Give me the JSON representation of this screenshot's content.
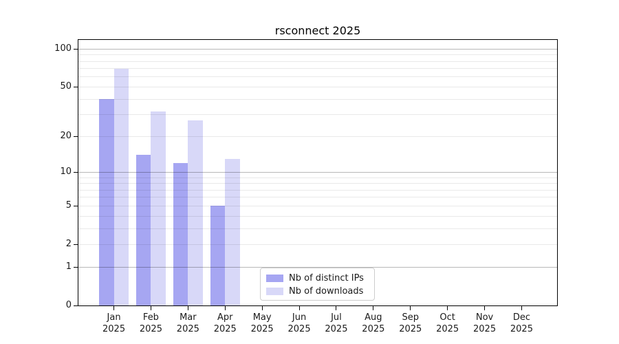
{
  "title": "rsconnect 2025",
  "chart_data": {
    "type": "bar",
    "title": "rsconnect 2025",
    "categories": [
      "Jan",
      "Feb",
      "Mar",
      "Apr",
      "May",
      "Jun",
      "Jul",
      "Aug",
      "Sep",
      "Oct",
      "Nov",
      "Dec"
    ],
    "category_year": "2025",
    "series": [
      {
        "name": "Nb of distinct IPs",
        "key": "distinct-ips",
        "color": "#a6a6f2",
        "values": [
          40,
          14,
          12,
          5,
          0,
          0,
          0,
          0,
          0,
          0,
          0,
          0
        ]
      },
      {
        "name": "Nb of downloads",
        "key": "downloads",
        "color": "#d8d8f8",
        "values": [
          70,
          32,
          27,
          13,
          0,
          0,
          0,
          0,
          0,
          0,
          0,
          0
        ]
      }
    ],
    "xlabel": "",
    "ylabel": "",
    "y_scale": "log1p",
    "y_axis_range": [
      0,
      118
    ],
    "y_tick_labels": [
      0,
      1,
      2,
      5,
      10,
      20,
      50,
      100
    ],
    "grid_major": [
      1,
      10,
      100
    ],
    "grid_minor": [
      2,
      3,
      4,
      5,
      6,
      7,
      8,
      9,
      20,
      30,
      40,
      50,
      60,
      70,
      80,
      90
    ],
    "grid": "on",
    "legend_position": "lower center"
  },
  "colors": {
    "series_dark": "#a6a6f2",
    "series_light": "#d8d8f8",
    "grid_major": "#b8b8b8",
    "grid_minor": "#ebebeb",
    "spine": "#000000",
    "text": "#1a1a1a",
    "legend_border": "#cccccc",
    "background": "#ffffff"
  }
}
